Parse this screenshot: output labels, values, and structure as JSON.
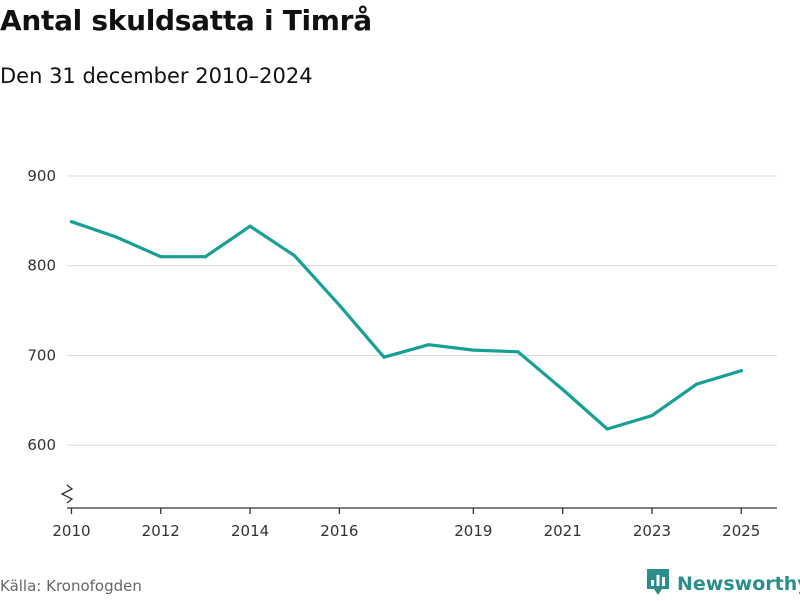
{
  "title": "Antal skuldsatta i Timrå",
  "subtitle": "Den 31 december 2010–2024",
  "source": "Källa: Kronofogden",
  "brand": {
    "name": "Newsworthy",
    "icon": "newsworthy-logo-icon",
    "color": "#2a8f8c"
  },
  "colors": {
    "line": "#16a096",
    "grid": "#dddddd",
    "axis": "#333333"
  },
  "chart_data": {
    "type": "line",
    "title": "Antal skuldsatta i Timrå",
    "subtitle": "Den 31 december 2010–2024",
    "xlabel": "",
    "ylabel": "",
    "xlim": [
      2009.9,
      2025.8
    ],
    "ylim": [
      530,
      920
    ],
    "x_ticks": [
      {
        "value": 2010,
        "label": "2010"
      },
      {
        "value": 2012,
        "label": "2012"
      },
      {
        "value": 2014,
        "label": "2014"
      },
      {
        "value": 2016,
        "label": "2016"
      },
      {
        "value": 2019,
        "label": "2019"
      },
      {
        "value": 2021,
        "label": "2021"
      },
      {
        "value": 2023,
        "label": "2023"
      },
      {
        "value": 2025,
        "label": "2025"
      }
    ],
    "y_ticks": [
      {
        "value": 600,
        "label": "600"
      },
      {
        "value": 700,
        "label": "700"
      },
      {
        "value": 800,
        "label": "800"
      },
      {
        "value": 900,
        "label": "900"
      }
    ],
    "grid": true,
    "axis_break": true,
    "series": [
      {
        "name": "Antal skuldsatta",
        "x": [
          2010,
          2011,
          2012,
          2013,
          2014,
          2015,
          2016,
          2017,
          2018,
          2019,
          2020,
          2021,
          2022,
          2023,
          2024,
          2025
        ],
        "values": [
          849,
          832,
          810,
          810,
          844,
          811,
          756,
          698,
          712,
          706,
          704,
          662,
          618,
          633,
          668,
          683
        ]
      }
    ]
  }
}
